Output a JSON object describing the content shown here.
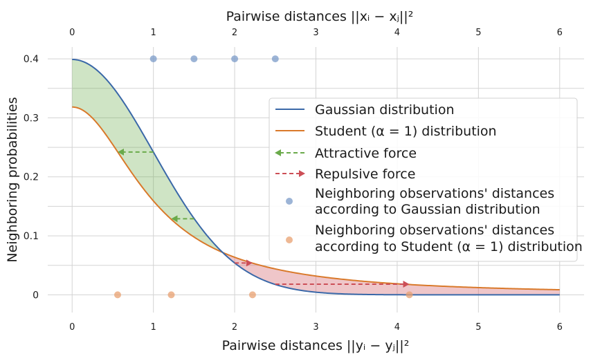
{
  "chart_data": {
    "type": "line",
    "x_label_bottom": "Pairwise distances ||yᵢ − yⱼ||²",
    "x_label_top": "Pairwise distances ||xᵢ − xⱼ||²",
    "y_label": "Neighboring probabilities",
    "xlim": [
      -0.3,
      6.3
    ],
    "ylim": [
      -0.03,
      0.42
    ],
    "x_ticks": [
      0,
      1,
      2,
      3,
      4,
      5,
      6
    ],
    "x_tick_labels": [
      "0",
      "1",
      "2",
      "3",
      "4",
      "5",
      "6"
    ],
    "y_ticks": [
      0,
      0.1,
      0.2,
      0.3,
      0.4
    ],
    "y_tick_labels": [
      "0",
      "0.1",
      "0.2",
      "0.3",
      "0.4"
    ],
    "grid": true,
    "legend_position": "right",
    "series": [
      {
        "name": "Gaussian distribution",
        "kind": "curve",
        "formula": "exp(-x^2/2)/sqrt(2*pi)",
        "x_range": [
          0,
          6
        ],
        "color": "#3a68a8"
      },
      {
        "name": "Student (α = 1) distribution",
        "kind": "curve",
        "formula": "1/(pi*(1+x^2))",
        "x_range": [
          0,
          6
        ],
        "color": "#d9792a"
      }
    ],
    "forces": [
      {
        "name": "Attractive force",
        "color": "#6aaa4a",
        "arrows": [
          {
            "y": 0.242,
            "x_from": 1.0,
            "x_to": 0.56
          },
          {
            "y": 0.129,
            "x_from": 1.5,
            "x_to": 1.22
          }
        ]
      },
      {
        "name": "Repulsive force",
        "color": "#cc4e56",
        "arrows": [
          {
            "y": 0.054,
            "x_from": 2.0,
            "x_to": 2.22
          },
          {
            "y": 0.018,
            "x_from": 2.5,
            "x_to": 4.15
          }
        ]
      }
    ],
    "points": [
      {
        "name": "Neighboring observations' distances according to Gaussian distribution",
        "color": "#7b9bc8",
        "y": 0.4,
        "x": [
          1.0,
          1.5,
          2.0,
          2.5
        ]
      },
      {
        "name": "Neighboring observations' distances according to Student (α = 1) distribution",
        "color": "#e8a070",
        "y": 0.0,
        "x": [
          0.56,
          1.22,
          2.22,
          4.15
        ]
      }
    ],
    "shading": {
      "attractive_color": "#6aaa4a",
      "repulsive_color": "#cc4e56"
    }
  },
  "legend": [
    {
      "key": "line-blue",
      "label": "Gaussian distribution",
      "color": "#3a68a8"
    },
    {
      "key": "line-orange",
      "label": "Student (α = 1) distribution",
      "color": "#d9792a"
    },
    {
      "key": "arrow-green",
      "label": "Attractive force",
      "color": "#6aaa4a"
    },
    {
      "key": "arrow-red",
      "label": "Repulsive force",
      "color": "#cc4e56"
    },
    {
      "key": "dot-blue",
      "label1": "Neighboring observations' distances",
      "label2": "according to Gaussian distribution",
      "color": "#7b9bc8"
    },
    {
      "key": "dot-orange",
      "label1": "Neighboring observations' distances",
      "label2": "according to Student (α = 1) distribution",
      "color": "#e8a070"
    }
  ]
}
